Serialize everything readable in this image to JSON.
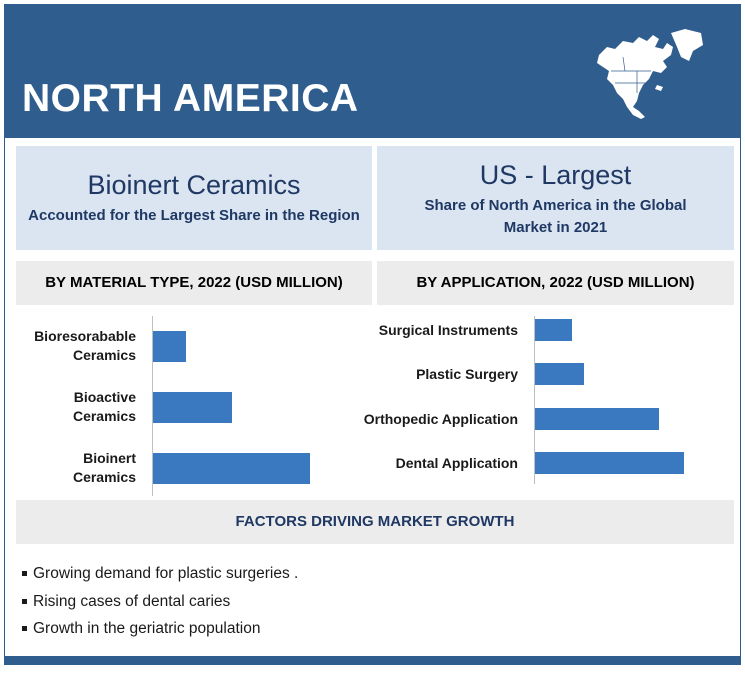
{
  "header": {
    "title": "NORTH AMERICA",
    "icon": "north-america-map-icon"
  },
  "cards": [
    {
      "heading": "Bioinert Ceramics",
      "text": "Accounted for the Largest Share in the Region"
    },
    {
      "heading": "US - Largest",
      "text": "Share of North America in the Global Market in 2021"
    }
  ],
  "chart_data": [
    {
      "type": "bar",
      "orientation": "horizontal",
      "title": "BY  MATERIAL TYPE, 2022 (USD MILLION)",
      "categories": [
        "Bioresorabable Ceramics",
        "Bioactive Ceramics",
        "Bioinert Ceramics"
      ],
      "values": [
        33,
        79,
        157
      ],
      "value_axis_labels": false
    },
    {
      "type": "bar",
      "orientation": "horizontal",
      "title": "BY APPLICATION, 2022 (USD MILLION)",
      "categories": [
        "Surgical Instruments",
        "Plastic Surgery",
        "Orthopedic Application",
        "Dental Application"
      ],
      "values": [
        37,
        49,
        124,
        149
      ],
      "value_axis_labels": false
    }
  ],
  "factors": {
    "title": "FACTORS DRIVING MARKET GROWTH",
    "items": [
      "Growing demand for plastic surgeries .",
      "Rising cases of dental caries",
      "Growth in the geriatric population"
    ]
  },
  "colors": {
    "brand": "#2f5d8e",
    "bar": "#3a78c0",
    "card": "#dae5f1",
    "section": "#ececec"
  }
}
